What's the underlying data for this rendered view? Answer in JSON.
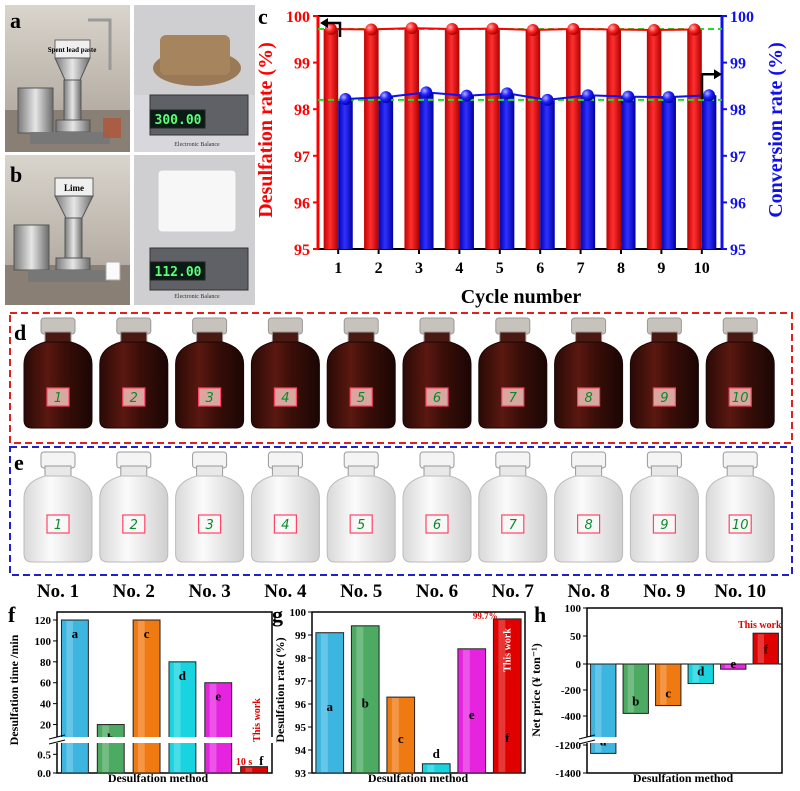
{
  "panel_letters": {
    "a": "a",
    "b": "b",
    "c": "c",
    "d": "d",
    "e": "e",
    "f": "f",
    "g": "g",
    "h": "h"
  },
  "photos": {
    "a": {
      "hopper_label": "Spent lead paste",
      "balance_reading": "300.00",
      "balance_brand": "Electronic Balance"
    },
    "b": {
      "hopper_label": "Lime",
      "balance_reading": "112.00",
      "balance_brand": "Electronic Balance"
    }
  },
  "bottle_labels": [
    "1",
    "2",
    "3",
    "4",
    "5",
    "6",
    "7",
    "8",
    "9",
    "10"
  ],
  "bottle_captions": [
    "No. 1",
    "No. 2",
    "No. 3",
    "No. 4",
    "No. 5",
    "No. 6",
    "No. 7",
    "No. 8",
    "No. 9",
    "No. 10"
  ],
  "colors": {
    "red": "#ff0000",
    "blue": "#1010ee",
    "green_dash": "#22dd22",
    "f_a": "#3cb6e0",
    "f_b": "#4caa62",
    "f_c": "#f07a12",
    "f_d": "#18d4e0",
    "f_e": "#e624e0",
    "f_f": "#e00000",
    "dashed_d": "#e02020",
    "dashed_e": "#2020d0"
  },
  "chart_data": [
    {
      "panel": "c",
      "type": "bar",
      "xlabel": "Cycle number",
      "ylabel": "Desulfation rate (%)",
      "ylabel_right": "Conversion rate (%)",
      "categories": [
        "1",
        "2",
        "3",
        "4",
        "5",
        "6",
        "7",
        "8",
        "9",
        "10"
      ],
      "ylim": [
        95,
        100
      ],
      "yticks": [
        "95",
        "96",
        "97",
        "98",
        "99",
        "100"
      ],
      "series": [
        {
          "values": [
            99.72,
            99.71,
            99.74,
            99.72,
            99.73,
            99.7,
            99.72,
            99.71,
            99.7,
            99.71
          ],
          "axis": "left",
          "color": "#ff0000"
        },
        {
          "values": [
            98.22,
            98.26,
            98.36,
            98.29,
            98.34,
            98.2,
            98.3,
            98.27,
            98.26,
            98.3
          ],
          "axis": "right",
          "color": "#1010ee"
        }
      ],
      "reference_lines": [
        99.72,
        98.2
      ]
    },
    {
      "panel": "f",
      "type": "bar",
      "xlabel": "Desulfation method",
      "ylabel": "Desulfation time /min",
      "categories": [
        "a",
        "b",
        "c",
        "d",
        "e",
        "f"
      ],
      "values": [
        120,
        20,
        120,
        80,
        60,
        0.17
      ],
      "broken_axis": true,
      "lower_yticks": [
        "0.0",
        "0.5"
      ],
      "upper_yticks": [
        "20",
        "40",
        "60",
        "80",
        "100",
        "120"
      ],
      "annotations": {
        "time_label": "10 s",
        "work_label": "This work"
      }
    },
    {
      "panel": "g",
      "type": "bar",
      "xlabel": "Desulfation method",
      "ylabel": "Desulfation rate (%)",
      "categories": [
        "a",
        "b",
        "c",
        "d",
        "e",
        "f"
      ],
      "values": [
        99.1,
        99.4,
        96.3,
        93.4,
        98.4,
        99.7
      ],
      "ylim": [
        93,
        100
      ],
      "yticks": [
        "93",
        "94",
        "95",
        "96",
        "97",
        "98",
        "99",
        "100"
      ],
      "annotations": {
        "value_label": "99.7%",
        "work_label": "This work"
      }
    },
    {
      "panel": "h",
      "type": "bar",
      "xlabel": "Desulfation method",
      "ylabel": "Net price (¥ ton⁻¹)",
      "categories": [
        "a",
        "b",
        "c",
        "d",
        "e",
        "f"
      ],
      "values": [
        -1260,
        -380,
        -320,
        -150,
        -40,
        55
      ],
      "broken_axis": true,
      "upper_yticks": [
        "100",
        "50",
        "0",
        "-200",
        "-400"
      ],
      "lower_yticks": [
        "-1200",
        "-1400"
      ],
      "annotations": {
        "work_label": "This work"
      }
    }
  ]
}
